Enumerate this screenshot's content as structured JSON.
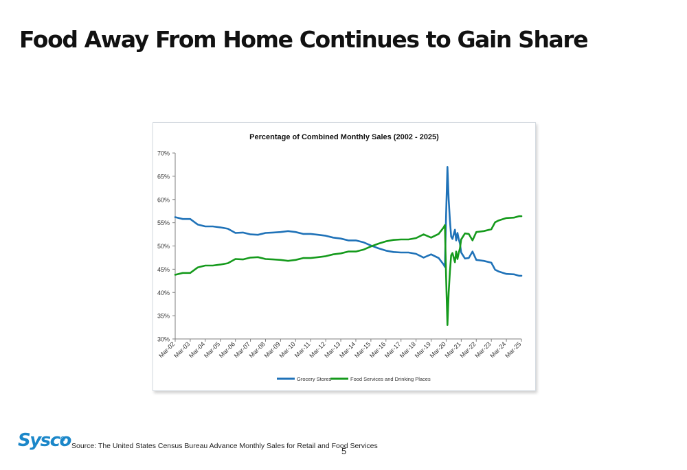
{
  "slide": {
    "title": "Food Away From Home Continues to Gain Share",
    "source": "Source: The United States Census Bureau Advance Monthly Sales for Retail and Food Services",
    "page_number": "5",
    "logo_text": "Sysco",
    "brand_color": "#1b87c9"
  },
  "chart_data": {
    "type": "line",
    "title": "Percentage of Combined Monthly Sales (2002 - 2025)",
    "xlabel": "",
    "ylabel": "",
    "ylim": [
      30,
      70
    ],
    "yticks": [
      "30%",
      "35%",
      "40%",
      "45%",
      "50%",
      "55%",
      "60%",
      "65%",
      "70%"
    ],
    "categories": [
      "Mar-02",
      "Mar-03",
      "Mar-04",
      "Mar-05",
      "Mar-06",
      "Mar-07",
      "Mar-08",
      "Mar-09",
      "Mar-10",
      "Mar-11",
      "Mar-12",
      "Mar-13",
      "Mar-14",
      "Mar-15",
      "Mar-16",
      "Mar-17",
      "Mar-18",
      "Mar-19",
      "Mar-20",
      "Mar-21",
      "Mar-22",
      "Mar-23",
      "Mar-24",
      "Mar-25"
    ],
    "grid": false,
    "legend_position": "bottom",
    "series": [
      {
        "name": "Grocery Stores",
        "color": "#1f72b8",
        "points": [
          [
            "Mar-02",
            56.2
          ],
          [
            "Sep-02",
            55.8
          ],
          [
            "Mar-03",
            55.8
          ],
          [
            "Sep-03",
            54.6
          ],
          [
            "Mar-04",
            54.2
          ],
          [
            "Sep-04",
            54.2
          ],
          [
            "Mar-05",
            54.0
          ],
          [
            "Sep-05",
            53.7
          ],
          [
            "Mar-06",
            52.8
          ],
          [
            "Sep-06",
            52.9
          ],
          [
            "Mar-07",
            52.5
          ],
          [
            "Sep-07",
            52.4
          ],
          [
            "Mar-08",
            52.8
          ],
          [
            "Sep-08",
            52.9
          ],
          [
            "Mar-09",
            53.0
          ],
          [
            "Sep-09",
            53.2
          ],
          [
            "Mar-10",
            53.0
          ],
          [
            "Sep-10",
            52.6
          ],
          [
            "Mar-11",
            52.6
          ],
          [
            "Sep-11",
            52.4
          ],
          [
            "Mar-12",
            52.2
          ],
          [
            "Sep-12",
            51.8
          ],
          [
            "Mar-13",
            51.6
          ],
          [
            "Sep-13",
            51.2
          ],
          [
            "Mar-14",
            51.2
          ],
          [
            "Sep-14",
            50.8
          ],
          [
            "Mar-15",
            50.1
          ],
          [
            "Sep-15",
            49.5
          ],
          [
            "Mar-16",
            49.0
          ],
          [
            "Sep-16",
            48.7
          ],
          [
            "Mar-17",
            48.6
          ],
          [
            "Sep-17",
            48.6
          ],
          [
            "Mar-18",
            48.3
          ],
          [
            "Sep-18",
            47.5
          ],
          [
            "Mar-19",
            48.2
          ],
          [
            "Sep-19",
            47.4
          ],
          [
            "Jan-20",
            46.0
          ],
          [
            "Feb-20",
            45.5
          ],
          [
            "Mar-20",
            57.0
          ],
          [
            "Apr-20",
            67.0
          ],
          [
            "May-20",
            60.0
          ],
          [
            "Jun-20",
            55.5
          ],
          [
            "Jul-20",
            52.0
          ],
          [
            "Aug-20",
            51.5
          ],
          [
            "Sep-20",
            52.5
          ],
          [
            "Oct-20",
            53.5
          ],
          [
            "Nov-20",
            51.2
          ],
          [
            "Dec-20",
            52.8
          ],
          [
            "Jan-21",
            51.5
          ],
          [
            "Feb-21",
            50.5
          ],
          [
            "Mar-21",
            48.6
          ],
          [
            "Jun-21",
            47.3
          ],
          [
            "Sep-21",
            47.4
          ],
          [
            "Dec-21",
            48.8
          ],
          [
            "Mar-22",
            47.0
          ],
          [
            "Sep-22",
            46.8
          ],
          [
            "Mar-23",
            46.4
          ],
          [
            "Jun-23",
            44.9
          ],
          [
            "Sep-23",
            44.5
          ],
          [
            "Mar-24",
            44.0
          ],
          [
            "Sep-24",
            43.9
          ],
          [
            "Jan-25",
            43.6
          ],
          [
            "Mar-25",
            43.6
          ]
        ]
      },
      {
        "name": "Food Services and Drinking Places",
        "color": "#159a1c",
        "points": [
          [
            "Mar-02",
            43.8
          ],
          [
            "Sep-02",
            44.2
          ],
          [
            "Mar-03",
            44.2
          ],
          [
            "Sep-03",
            45.4
          ],
          [
            "Mar-04",
            45.8
          ],
          [
            "Sep-04",
            45.8
          ],
          [
            "Mar-05",
            46.0
          ],
          [
            "Sep-05",
            46.3
          ],
          [
            "Mar-06",
            47.2
          ],
          [
            "Sep-06",
            47.1
          ],
          [
            "Mar-07",
            47.5
          ],
          [
            "Sep-07",
            47.6
          ],
          [
            "Mar-08",
            47.2
          ],
          [
            "Sep-08",
            47.1
          ],
          [
            "Mar-09",
            47.0
          ],
          [
            "Sep-09",
            46.8
          ],
          [
            "Mar-10",
            47.0
          ],
          [
            "Sep-10",
            47.4
          ],
          [
            "Mar-11",
            47.4
          ],
          [
            "Sep-11",
            47.6
          ],
          [
            "Mar-12",
            47.8
          ],
          [
            "Sep-12",
            48.2
          ],
          [
            "Mar-13",
            48.4
          ],
          [
            "Sep-13",
            48.8
          ],
          [
            "Mar-14",
            48.8
          ],
          [
            "Sep-14",
            49.2
          ],
          [
            "Mar-15",
            49.9
          ],
          [
            "Sep-15",
            50.5
          ],
          [
            "Mar-16",
            51.0
          ],
          [
            "Sep-16",
            51.3
          ],
          [
            "Mar-17",
            51.4
          ],
          [
            "Sep-17",
            51.4
          ],
          [
            "Mar-18",
            51.7
          ],
          [
            "Sep-18",
            52.5
          ],
          [
            "Mar-19",
            51.8
          ],
          [
            "Sep-19",
            52.6
          ],
          [
            "Jan-20",
            54.0
          ],
          [
            "Feb-20",
            54.5
          ],
          [
            "Mar-20",
            43.0
          ],
          [
            "Apr-20",
            33.0
          ],
          [
            "May-20",
            40.0
          ],
          [
            "Jun-20",
            44.5
          ],
          [
            "Jul-20",
            48.0
          ],
          [
            "Aug-20",
            48.5
          ],
          [
            "Sep-20",
            47.5
          ],
          [
            "Oct-20",
            46.5
          ],
          [
            "Nov-20",
            48.8
          ],
          [
            "Dec-20",
            47.2
          ],
          [
            "Jan-21",
            48.5
          ],
          [
            "Feb-21",
            49.5
          ],
          [
            "Mar-21",
            51.4
          ],
          [
            "Jun-21",
            52.7
          ],
          [
            "Sep-21",
            52.6
          ],
          [
            "Dec-21",
            51.2
          ],
          [
            "Mar-22",
            53.0
          ],
          [
            "Sep-22",
            53.2
          ],
          [
            "Mar-23",
            53.6
          ],
          [
            "Jun-23",
            55.1
          ],
          [
            "Sep-23",
            55.5
          ],
          [
            "Mar-24",
            56.0
          ],
          [
            "Sep-24",
            56.1
          ],
          [
            "Jan-25",
            56.4
          ],
          [
            "Mar-25",
            56.4
          ]
        ]
      }
    ]
  }
}
